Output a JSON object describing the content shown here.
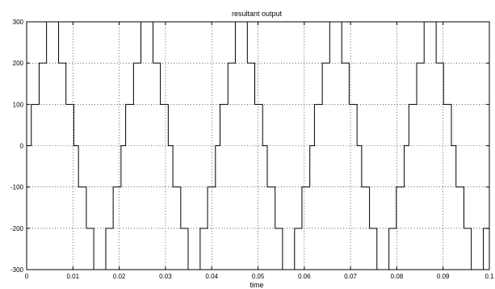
{
  "chart_data": {
    "type": "line",
    "title": "resultant output",
    "xlabel": "time",
    "ylabel": "",
    "xlim": [
      0,
      0.1
    ],
    "ylim": [
      -300,
      300
    ],
    "grid": true,
    "x_ticks": [
      0,
      0.01,
      0.02,
      0.03,
      0.04,
      0.05,
      0.06,
      0.07,
      0.08,
      0.09,
      0.1
    ],
    "x_tick_labels": [
      "0",
      "0.01",
      "0.02",
      "0.03",
      "0.04",
      "0.05",
      "0.06",
      "0.07",
      "0.08",
      "0.09",
      "0.1"
    ],
    "y_ticks": [
      -300,
      -200,
      -100,
      0,
      100,
      200,
      300
    ],
    "y_tick_labels": [
      "-300",
      "-200",
      "-100",
      "0",
      "100",
      "200",
      "300"
    ],
    "series": [
      {
        "color": "#000000",
        "step": true,
        "x": [
          0,
          0.001,
          0.0027,
          0.0043,
          0.0069,
          0.0085,
          0.0102,
          0.0112,
          0.0129,
          0.0145,
          0.0171,
          0.0187,
          0.0204,
          0.0214,
          0.0231,
          0.0247,
          0.0273,
          0.0289,
          0.0306,
          0.0316,
          0.0333,
          0.0349,
          0.0375,
          0.0391,
          0.0408,
          0.0418,
          0.0435,
          0.0451,
          0.0477,
          0.0493,
          0.051,
          0.052,
          0.0537,
          0.0553,
          0.0579,
          0.0595,
          0.0612,
          0.0622,
          0.0639,
          0.0655,
          0.0681,
          0.0697,
          0.0714,
          0.0724,
          0.0741,
          0.0757,
          0.0783,
          0.0799,
          0.0816,
          0.0826,
          0.0843,
          0.0859,
          0.0885,
          0.0901,
          0.0918,
          0.0928,
          0.0945,
          0.0961,
          0.0987,
          0.1
        ],
        "y": [
          0,
          100,
          200,
          300,
          200,
          100,
          0,
          -100,
          -200,
          -300,
          -200,
          -100,
          0,
          100,
          200,
          300,
          200,
          100,
          0,
          -100,
          -200,
          -300,
          -200,
          -100,
          0,
          100,
          200,
          300,
          200,
          100,
          0,
          -100,
          -200,
          -300,
          -200,
          -100,
          0,
          100,
          200,
          300,
          200,
          100,
          0,
          -100,
          -200,
          -300,
          -200,
          -100,
          0,
          100,
          200,
          300,
          200,
          100,
          0,
          -100,
          -200,
          -300,
          -200,
          -100
        ]
      }
    ]
  }
}
